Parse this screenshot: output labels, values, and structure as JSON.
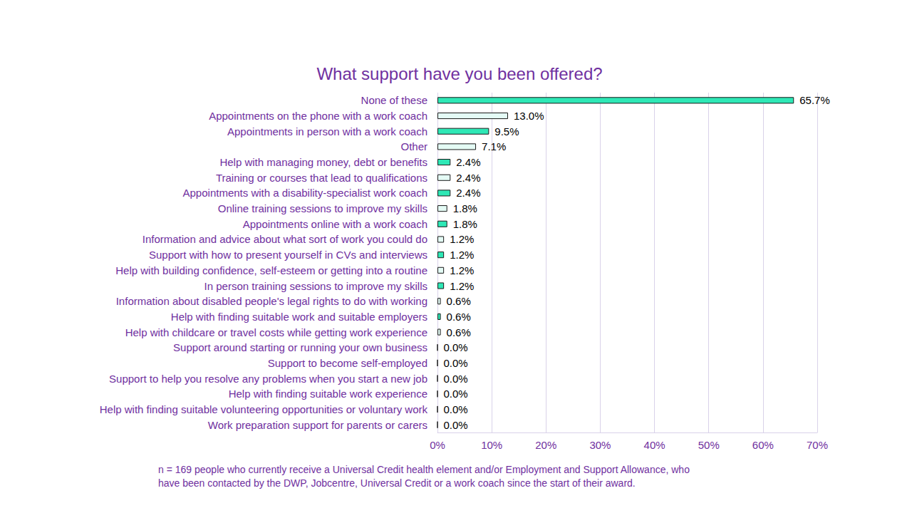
{
  "chart_data": {
    "type": "bar",
    "orientation": "horizontal",
    "title": "What support have you been offered?",
    "categories": [
      "None of these",
      "Appointments on the phone with a work coach",
      "Appointments in person with a work coach",
      "Other",
      "Help with managing money, debt or benefits",
      "Training or courses that lead to qualifications",
      "Appointments with a disability-specialist work coach",
      "Online training sessions to improve my skills",
      "Appointments online with a work coach",
      "Information and advice about what sort of work you could do",
      "Support with how to present yourself in CVs and interviews",
      "Help with building confidence, self-esteem or getting into a routine",
      "In person training sessions to improve my skills",
      "Information about disabled people's legal rights to do with working",
      "Help with finding suitable work and suitable employers",
      "Help with childcare or travel costs while getting work experience",
      "Support around starting or running your own business",
      "Support to become self-employed",
      "Support to help you resolve any problems when you start a new job",
      "Help with finding suitable work experience",
      "Help with finding suitable volunteering opportunities or voluntary work",
      "Work preparation support for parents or carers"
    ],
    "values": [
      65.7,
      13.0,
      9.5,
      7.1,
      2.4,
      2.4,
      2.4,
      1.8,
      1.8,
      1.2,
      1.2,
      1.2,
      1.2,
      0.6,
      0.6,
      0.6,
      0.0,
      0.0,
      0.0,
      0.0,
      0.0,
      0.0
    ],
    "value_labels": [
      "65.7%",
      "13.0%",
      "9.5%",
      "7.1%",
      "2.4%",
      "2.4%",
      "2.4%",
      "1.8%",
      "1.8%",
      "1.2%",
      "1.2%",
      "1.2%",
      "1.2%",
      "0.6%",
      "0.6%",
      "0.6%",
      "0.0%",
      "0.0%",
      "0.0%",
      "0.0%",
      "0.0%",
      "0.0%"
    ],
    "colors": [
      "#2ee8b6",
      "#e4fbf5",
      "#2ee8b6",
      "#e4fbf5",
      "#2ee8b6",
      "#e4fbf5",
      "#2ee8b6",
      "#e4fbf5",
      "#2ee8b6",
      "#e4fbf5",
      "#2ee8b6",
      "#e4fbf5",
      "#2ee8b6",
      "#e4fbf5",
      "#2ee8b6",
      "#e4fbf5",
      "#2ee8b6",
      "#e4fbf5",
      "#2ee8b6",
      "#e4fbf5",
      "#2ee8b6",
      "#e4fbf5"
    ],
    "xlim": [
      0,
      70
    ],
    "xticks": [
      {
        "value": 0,
        "label": "0%"
      },
      {
        "value": 10,
        "label": "10%"
      },
      {
        "value": 20,
        "label": "20%"
      },
      {
        "value": 30,
        "label": "30%"
      },
      {
        "value": 40,
        "label": "40%"
      },
      {
        "value": 50,
        "label": "50%"
      },
      {
        "value": 60,
        "label": "60%"
      },
      {
        "value": 70,
        "label": "70%"
      }
    ],
    "grid": true,
    "data_labels": true,
    "annotations": [
      "n = 169 people who currently receive a Universal Credit health element and/or Employment and Support Allowance, who",
      "have been contacted by the DWP, Jobcentre, Universal Credit or a work coach since the start of their award."
    ]
  }
}
